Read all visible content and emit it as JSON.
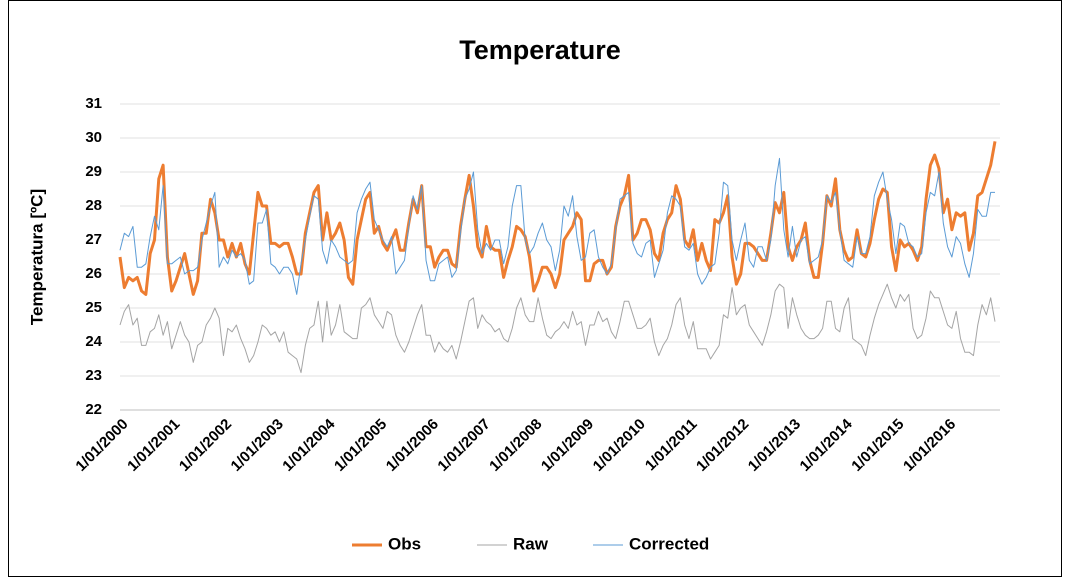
{
  "chart_data": {
    "type": "line",
    "title": "Temperature",
    "y_label": "Temperatura [ºC]",
    "categories": [
      "1/01/2000",
      null,
      null,
      null,
      null,
      null,
      null,
      null,
      null,
      null,
      null,
      null,
      "1/01/2001",
      null,
      null,
      null,
      null,
      null,
      null,
      null,
      null,
      null,
      null,
      null,
      "1/01/2002",
      null,
      null,
      null,
      null,
      null,
      null,
      null,
      null,
      null,
      null,
      null,
      "1/01/2003",
      null,
      null,
      null,
      null,
      null,
      null,
      null,
      null,
      null,
      null,
      null,
      "1/01/2004",
      null,
      null,
      null,
      null,
      null,
      null,
      null,
      null,
      null,
      null,
      null,
      "1/01/2005",
      null,
      null,
      null,
      null,
      null,
      null,
      null,
      null,
      null,
      null,
      null,
      "1/01/2006",
      null,
      null,
      null,
      null,
      null,
      null,
      null,
      null,
      null,
      null,
      null,
      "1/01/2007",
      null,
      null,
      null,
      null,
      null,
      null,
      null,
      null,
      null,
      null,
      null,
      "1/01/2008",
      null,
      null,
      null,
      null,
      null,
      null,
      null,
      null,
      null,
      null,
      null,
      "1/01/2009",
      null,
      null,
      null,
      null,
      null,
      null,
      null,
      null,
      null,
      null,
      null,
      "1/01/2010",
      null,
      null,
      null,
      null,
      null,
      null,
      null,
      null,
      null,
      null,
      null,
      "1/01/2011",
      null,
      null,
      null,
      null,
      null,
      null,
      null,
      null,
      null,
      null,
      null,
      "1/01/2012",
      null,
      null,
      null,
      null,
      null,
      null,
      null,
      null,
      null,
      null,
      null,
      "1/01/2013",
      null,
      null,
      null,
      null,
      null,
      null,
      null,
      null,
      null,
      null,
      null,
      "1/01/2014",
      null,
      null,
      null,
      null,
      null,
      null,
      null,
      null,
      null,
      null,
      null,
      "1/01/2015",
      null,
      null,
      null,
      null,
      null,
      null,
      null,
      null,
      null,
      null,
      null,
      "1/01/2016",
      null,
      null,
      null,
      null,
      null,
      null,
      null,
      null,
      null,
      null,
      null
    ],
    "series": [
      {
        "name": "Obs",
        "color": "#ed7d31",
        "width": 3,
        "values": [
          26.5,
          25.6,
          25.9,
          25.8,
          25.9,
          25.5,
          25.4,
          26.6,
          27.0,
          28.8,
          29.2,
          26.5,
          25.5,
          25.8,
          26.2,
          26.6,
          26.0,
          25.4,
          25.8,
          27.2,
          27.2,
          28.2,
          27.8,
          27.0,
          27.0,
          26.5,
          26.9,
          26.5,
          26.9,
          26.3,
          26.0,
          27.2,
          28.4,
          28.0,
          28.0,
          26.9,
          26.9,
          26.8,
          26.9,
          26.9,
          26.5,
          26.0,
          26.0,
          27.2,
          27.8,
          28.4,
          28.6,
          27.0,
          27.8,
          27.0,
          27.2,
          27.5,
          27.0,
          25.9,
          25.7,
          27.0,
          27.6,
          28.2,
          28.4,
          27.2,
          27.4,
          26.9,
          26.7,
          27.0,
          27.3,
          26.7,
          26.7,
          27.5,
          28.2,
          27.8,
          28.6,
          26.8,
          26.8,
          26.2,
          26.5,
          26.7,
          26.7,
          26.3,
          26.2,
          27.4,
          28.2,
          28.9,
          28.0,
          26.8,
          26.5,
          27.4,
          26.8,
          26.7,
          26.7,
          25.9,
          26.4,
          26.8,
          27.4,
          27.3,
          27.1,
          26.5,
          25.5,
          25.8,
          26.2,
          26.2,
          26.0,
          25.6,
          26.0,
          27.0,
          27.2,
          27.4,
          27.8,
          27.6,
          25.8,
          25.8,
          26.3,
          26.4,
          26.4,
          26.0,
          26.2,
          27.4,
          28.0,
          28.3,
          28.9,
          27.0,
          27.2,
          27.6,
          27.6,
          27.3,
          26.6,
          26.4,
          27.2,
          27.6,
          27.8,
          28.6,
          28.2,
          27.0,
          26.8,
          27.3,
          26.4,
          26.9,
          26.4,
          26.1,
          27.6,
          27.5,
          27.8,
          28.3,
          26.5,
          25.7,
          26.0,
          26.9,
          26.9,
          26.8,
          26.6,
          26.4,
          26.4,
          27.2,
          28.1,
          27.8,
          28.4,
          26.8,
          26.4,
          26.8,
          27.0,
          27.5,
          26.4,
          25.9,
          25.9,
          26.9,
          28.3,
          28.0,
          28.8,
          27.3,
          26.7,
          26.4,
          26.5,
          27.3,
          26.6,
          26.5,
          26.9,
          27.6,
          28.2,
          28.5,
          28.4,
          26.8,
          26.1,
          27.0,
          26.8,
          26.9,
          26.7,
          26.4,
          26.8,
          28.2,
          29.2,
          29.5,
          29.1,
          27.8,
          28.2,
          27.3,
          27.8,
          27.7,
          27.8,
          26.7,
          27.2,
          28.3,
          28.4,
          28.8,
          29.2,
          29.9
        ]
      },
      {
        "name": "Raw",
        "color": "#a5a5a5",
        "width": 1,
        "values": [
          24.5,
          24.9,
          25.1,
          24.5,
          24.7,
          23.9,
          23.9,
          24.3,
          24.4,
          24.8,
          24.2,
          24.6,
          23.8,
          24.2,
          24.6,
          24.2,
          24.0,
          23.4,
          23.9,
          24.0,
          24.5,
          24.7,
          25.0,
          24.7,
          23.6,
          24.4,
          24.3,
          24.5,
          24.1,
          23.8,
          23.4,
          23.6,
          24.0,
          24.5,
          24.4,
          24.2,
          24.3,
          24.0,
          24.3,
          23.7,
          23.6,
          23.5,
          23.1,
          23.9,
          24.4,
          24.5,
          25.2,
          24.0,
          25.2,
          24.2,
          24.5,
          25.1,
          24.3,
          24.2,
          24.1,
          24.1,
          25.0,
          25.1,
          25.3,
          24.8,
          24.6,
          24.4,
          24.9,
          24.8,
          24.2,
          23.9,
          23.7,
          24.0,
          24.4,
          24.8,
          25.1,
          24.2,
          24.2,
          23.7,
          24.0,
          23.8,
          23.7,
          23.9,
          23.5,
          24.0,
          24.6,
          25.2,
          25.3,
          24.4,
          24.8,
          24.6,
          24.5,
          24.3,
          24.4,
          24.1,
          24.0,
          24.4,
          25.0,
          25.3,
          24.8,
          24.6,
          24.6,
          25.3,
          24.7,
          24.2,
          24.1,
          24.3,
          24.4,
          24.6,
          24.4,
          24.9,
          24.5,
          24.6,
          23.9,
          24.5,
          24.5,
          24.9,
          24.6,
          24.7,
          24.3,
          24.1,
          24.6,
          25.2,
          25.2,
          24.8,
          24.4,
          24.4,
          24.5,
          24.7,
          24.0,
          23.6,
          23.9,
          24.1,
          24.5,
          25.1,
          25.3,
          24.5,
          24.1,
          24.6,
          23.8,
          23.8,
          23.8,
          23.5,
          23.7,
          23.9,
          24.8,
          24.7,
          25.6,
          24.8,
          25.0,
          25.1,
          24.5,
          24.3,
          24.1,
          23.9,
          24.3,
          24.8,
          25.5,
          25.7,
          25.6,
          24.4,
          25.3,
          24.8,
          24.4,
          24.2,
          24.1,
          24.1,
          24.2,
          24.4,
          25.2,
          25.2,
          24.4,
          24.3,
          25.0,
          25.3,
          24.1,
          24.0,
          23.9,
          23.6,
          24.2,
          24.7,
          25.1,
          25.4,
          25.7,
          25.3,
          25.0,
          25.4,
          25.2,
          25.4,
          24.4,
          24.1,
          24.2,
          24.7,
          25.5,
          25.3,
          25.3,
          24.9,
          24.5,
          24.4,
          24.9,
          24.1,
          23.7,
          23.7,
          23.6,
          24.5,
          25.1,
          24.8,
          25.3,
          24.6
        ]
      },
      {
        "name": "Corrected",
        "color": "#5b9bd5",
        "width": 1,
        "values": [
          26.7,
          27.2,
          27.1,
          27.4,
          26.2,
          26.2,
          26.3,
          27.1,
          27.7,
          27.3,
          28.6,
          26.3,
          26.3,
          26.4,
          26.5,
          26.0,
          26.1,
          26.1,
          26.2,
          27.0,
          27.5,
          28.0,
          28.4,
          26.2,
          26.5,
          26.3,
          26.7,
          26.5,
          26.6,
          26.4,
          25.7,
          25.8,
          27.5,
          27.5,
          27.9,
          26.3,
          26.2,
          26.0,
          26.2,
          26.2,
          26.0,
          25.4,
          26.3,
          27.0,
          27.7,
          28.3,
          28.2,
          26.7,
          26.3,
          27.0,
          26.8,
          26.5,
          26.4,
          26.3,
          26.4,
          27.8,
          28.2,
          28.5,
          28.7,
          27.6,
          27.3,
          27.0,
          26.8,
          27.1,
          26.0,
          26.2,
          26.4,
          27.4,
          28.3,
          27.9,
          28.6,
          26.4,
          25.8,
          25.8,
          26.3,
          26.4,
          26.5,
          25.9,
          26.1,
          27.2,
          28.2,
          28.5,
          29.0,
          27.3,
          26.6,
          26.9,
          26.7,
          27.0,
          27.0,
          26.3,
          26.8,
          28.0,
          28.6,
          28.6,
          27.0,
          26.6,
          26.8,
          27.2,
          27.5,
          27.0,
          26.8,
          26.1,
          26.7,
          28.0,
          27.7,
          28.3,
          27.1,
          26.4,
          26.5,
          27.2,
          27.3,
          26.5,
          26.2,
          26.0,
          26.3,
          27.3,
          28.2,
          28.3,
          28.4,
          26.9,
          26.6,
          26.5,
          26.9,
          27.0,
          25.9,
          26.3,
          26.7,
          27.8,
          28.3,
          28.2,
          28.0,
          26.8,
          26.7,
          26.9,
          26.0,
          25.7,
          25.9,
          26.2,
          26.3,
          27.2,
          28.7,
          28.6,
          27.0,
          26.4,
          27.0,
          27.5,
          26.4,
          26.2,
          26.8,
          26.8,
          26.4,
          27.0,
          28.6,
          29.4,
          27.3,
          26.5,
          27.4,
          26.5,
          27.0,
          27.1,
          26.3,
          26.4,
          26.5,
          27.0,
          28.3,
          28.1,
          28.4,
          27.3,
          26.4,
          26.3,
          26.2,
          27.1,
          26.6,
          26.6,
          27.1,
          28.3,
          28.7,
          29.0,
          28.2,
          27.6,
          26.6,
          27.5,
          27.4,
          26.9,
          26.8,
          26.5,
          26.6,
          27.8,
          28.4,
          28.3,
          29.0,
          27.5,
          26.8,
          26.5,
          27.1,
          26.9,
          26.3,
          25.9,
          26.6,
          27.9,
          27.7,
          27.7,
          28.4,
          28.4
        ]
      }
    ],
    "ylim": [
      22,
      31
    ],
    "yticks": [
      22,
      23,
      24,
      25,
      26,
      27,
      28,
      29,
      30,
      31
    ],
    "grid": true,
    "legend": "bottom"
  }
}
